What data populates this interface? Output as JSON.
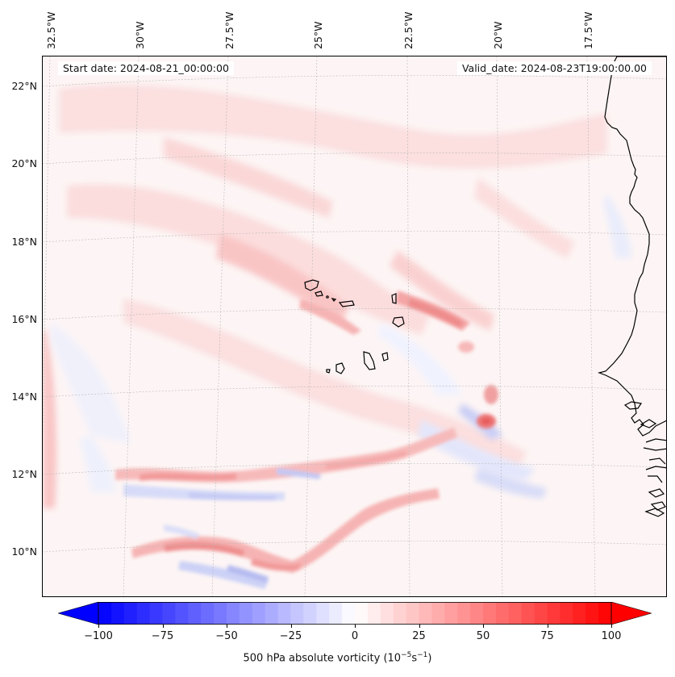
{
  "map": {
    "title_left": "Start date: 2024-08-21_00:00:00",
    "title_right": "Valid_date: 2024-08-23T19:00:00.00",
    "projection": "conic",
    "lon_labels": [
      "32.5°W",
      "30°W",
      "27.5°W",
      "25°W",
      "22.5°W",
      "20°W",
      "17.5°W"
    ],
    "lat_labels": [
      "22°N",
      "20°N",
      "18°N",
      "16°N",
      "14°N",
      "12°N",
      "10°N"
    ],
    "field": "500 hPa absolute vorticity",
    "features": [
      "Cape Verde islands",
      "West African coastline"
    ]
  },
  "colorbar": {
    "ticks": [
      "−100",
      "−75",
      "−50",
      "−25",
      "0",
      "25",
      "50",
      "75",
      "100"
    ],
    "tick_values": [
      -100,
      -75,
      -50,
      -25,
      0,
      25,
      50,
      75,
      100
    ],
    "min": -100,
    "max": 100,
    "label_text": "500 hPa absolute vorticity (10",
    "label_exp1": "−5",
    "label_mid": "s",
    "label_exp2": "−1",
    "label_end": ")",
    "color_min": "#0000ff",
    "color_mid": "#ffffff",
    "color_max": "#ff0000"
  }
}
